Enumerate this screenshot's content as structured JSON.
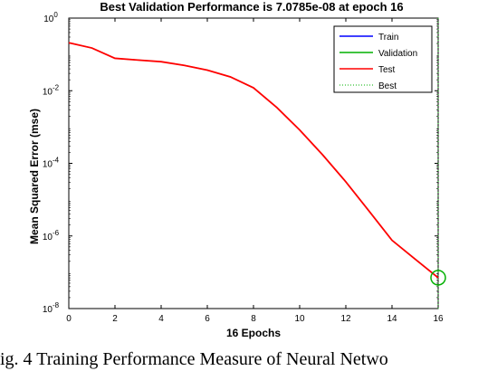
{
  "chart_data": {
    "type": "line",
    "title": "Best Validation Performance is 7.0785e-08 at epoch 16",
    "xlabel": "16 Epochs",
    "ylabel": "Mean Squared Error  (mse)",
    "xlim": [
      0,
      16
    ],
    "ylim": [
      1e-08,
      1
    ],
    "yscale": "log",
    "x_ticks": [
      "0",
      "2",
      "4",
      "6",
      "8",
      "10",
      "12",
      "14",
      "16"
    ],
    "y_ticks": [
      {
        "base": "10",
        "exp": "0"
      },
      {
        "base": "10",
        "exp": "-2"
      },
      {
        "base": "10",
        "exp": "-4"
      },
      {
        "base": "10",
        "exp": "-6"
      },
      {
        "base": "10",
        "exp": "-8"
      }
    ],
    "x": [
      0,
      1,
      2,
      3,
      4,
      5,
      6,
      7,
      8,
      9,
      10,
      11,
      12,
      13,
      14,
      15,
      16
    ],
    "series": [
      {
        "name": "Train",
        "color": "#0000ff",
        "values": [
          0.21,
          0.15,
          0.078,
          0.07,
          0.063,
          0.05,
          0.037,
          0.024,
          0.012,
          0.0035,
          0.00083,
          0.00017,
          3.1e-05,
          4.9e-06,
          7.6e-07,
          2.3e-07,
          7.0785e-08
        ]
      },
      {
        "name": "Validation",
        "color": "#00b000",
        "values": [
          0.21,
          0.15,
          0.078,
          0.07,
          0.063,
          0.05,
          0.037,
          0.024,
          0.012,
          0.0035,
          0.00083,
          0.00017,
          3.1e-05,
          4.9e-06,
          7.6e-07,
          2.3e-07,
          7.0785e-08
        ]
      },
      {
        "name": "Test",
        "color": "#ff0000",
        "values": [
          0.21,
          0.15,
          0.078,
          0.07,
          0.063,
          0.05,
          0.037,
          0.024,
          0.012,
          0.0035,
          0.00083,
          0.00017,
          3.1e-05,
          4.9e-06,
          7.6e-07,
          2.3e-07,
          7.0785e-08
        ]
      }
    ],
    "best": {
      "name": "Best",
      "epoch": 16,
      "value": 7.0785e-08,
      "color": "#00b000"
    },
    "legend_position": "top-right",
    "grid": false
  },
  "caption": "ig. 4 Training Performance Measure of Neural Netwo"
}
